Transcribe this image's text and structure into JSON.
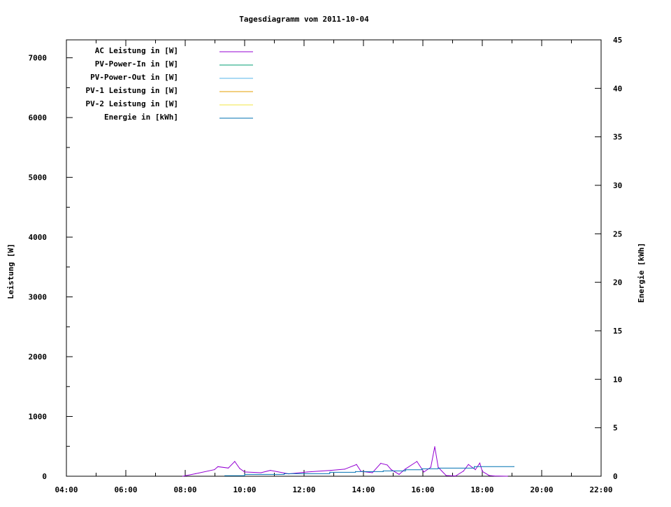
{
  "chart_data": {
    "type": "line",
    "title": "Tagesdiagramm vom 2011-10-04",
    "ylabel": "Leistung [W]",
    "y2label": "Energie [kWh]",
    "xlim": [
      "04:00",
      "22:00"
    ],
    "ylim": [
      0,
      7300
    ],
    "y2lim": [
      0,
      45
    ],
    "x_ticks": [
      "04:00",
      "06:00",
      "08:00",
      "10:00",
      "12:00",
      "14:00",
      "16:00",
      "18:00",
      "20:00",
      "22:00"
    ],
    "y_ticks": [
      0,
      1000,
      2000,
      3000,
      4000,
      5000,
      6000,
      7000
    ],
    "y2_ticks": [
      0,
      5,
      10,
      15,
      20,
      25,
      30,
      35,
      40,
      45
    ],
    "grid": false,
    "legend_position": "top-left",
    "series": [
      {
        "name": "AC Leistung in [W]",
        "color": "#9400d3",
        "axis": "y",
        "x": [
          "07:55",
          "08:21",
          "08:59",
          "09:06",
          "09:27",
          "09:40",
          "09:50",
          "10:00",
          "10:33",
          "10:52",
          "11:29",
          "12:07",
          "12:54",
          "13:22",
          "13:46",
          "13:55",
          "14:18",
          "14:35",
          "14:48",
          "14:56",
          "15:12",
          "15:24",
          "15:48",
          "16:02",
          "16:16",
          "16:24",
          "16:31",
          "16:47",
          "17:06",
          "17:22",
          "17:32",
          "17:46",
          "17:55",
          "18:00",
          "18:14",
          "18:24",
          "18:51"
        ],
        "values": [
          0,
          43,
          110,
          160,
          137,
          247,
          130,
          71,
          59,
          98,
          39,
          71,
          98,
          118,
          196,
          82,
          59,
          216,
          188,
          110,
          31,
          118,
          247,
          71,
          149,
          494,
          149,
          12,
          4,
          86,
          196,
          110,
          220,
          82,
          12,
          4,
          0
        ]
      },
      {
        "name": "PV-Power-In in [W]",
        "color": "#009e73",
        "axis": "y",
        "x": [],
        "values": []
      },
      {
        "name": "PV-Power-Out in [W]",
        "color": "#56b4e9",
        "axis": "y",
        "x": [],
        "values": []
      },
      {
        "name": "PV-1 Leistung in [W]",
        "color": "#e69f00",
        "axis": "y",
        "x": [],
        "values": []
      },
      {
        "name": "PV-2 Leistung in [W]",
        "color": "#f0e442",
        "axis": "y",
        "x": [],
        "values": []
      },
      {
        "name": "Energie in [kWh]",
        "color": "#0072b2",
        "axis": "y2",
        "step": true,
        "x": [
          "09:20",
          "10:00",
          "11:20",
          "12:52",
          "13:44",
          "14:40",
          "15:25",
          "15:58",
          "16:31",
          "17:44",
          "19:04"
        ],
        "values": [
          0.05,
          0.19,
          0.26,
          0.41,
          0.48,
          0.55,
          0.67,
          0.77,
          0.84,
          0.99,
          0.99
        ]
      }
    ]
  }
}
